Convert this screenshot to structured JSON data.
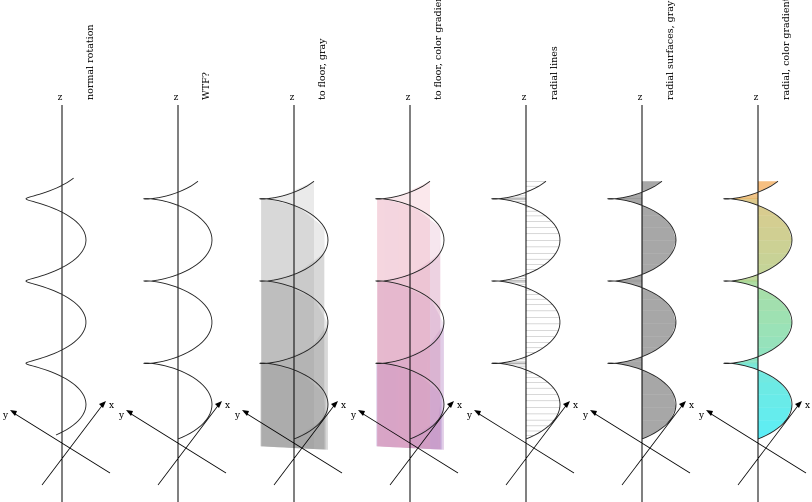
{
  "panels": [
    {
      "title": "normal rotation",
      "style": "curve-normal"
    },
    {
      "title": "WTF?",
      "style": "curve-wtf"
    },
    {
      "title": "to floor, gray",
      "style": "floor-gray"
    },
    {
      "title": "to floor, color gradient",
      "style": "floor-color"
    },
    {
      "title": "radial lines",
      "style": "radial-lines"
    },
    {
      "title": "radial surfaces, gray",
      "style": "radial-gray"
    },
    {
      "title": "radial, color gradient",
      "style": "radial-color"
    }
  ],
  "axis_labels": {
    "z": "z",
    "x": "x",
    "y": "y"
  },
  "colors": {
    "stroke": "#222222",
    "gray_fill": "#8a8a8a",
    "floor_pink": "#f29aa8",
    "floor_purple": "#8a6fd0",
    "grad_top": "#f7a24a",
    "grad_mid": "#8ccf7a",
    "grad_bottom": "#17e6f2"
  }
}
